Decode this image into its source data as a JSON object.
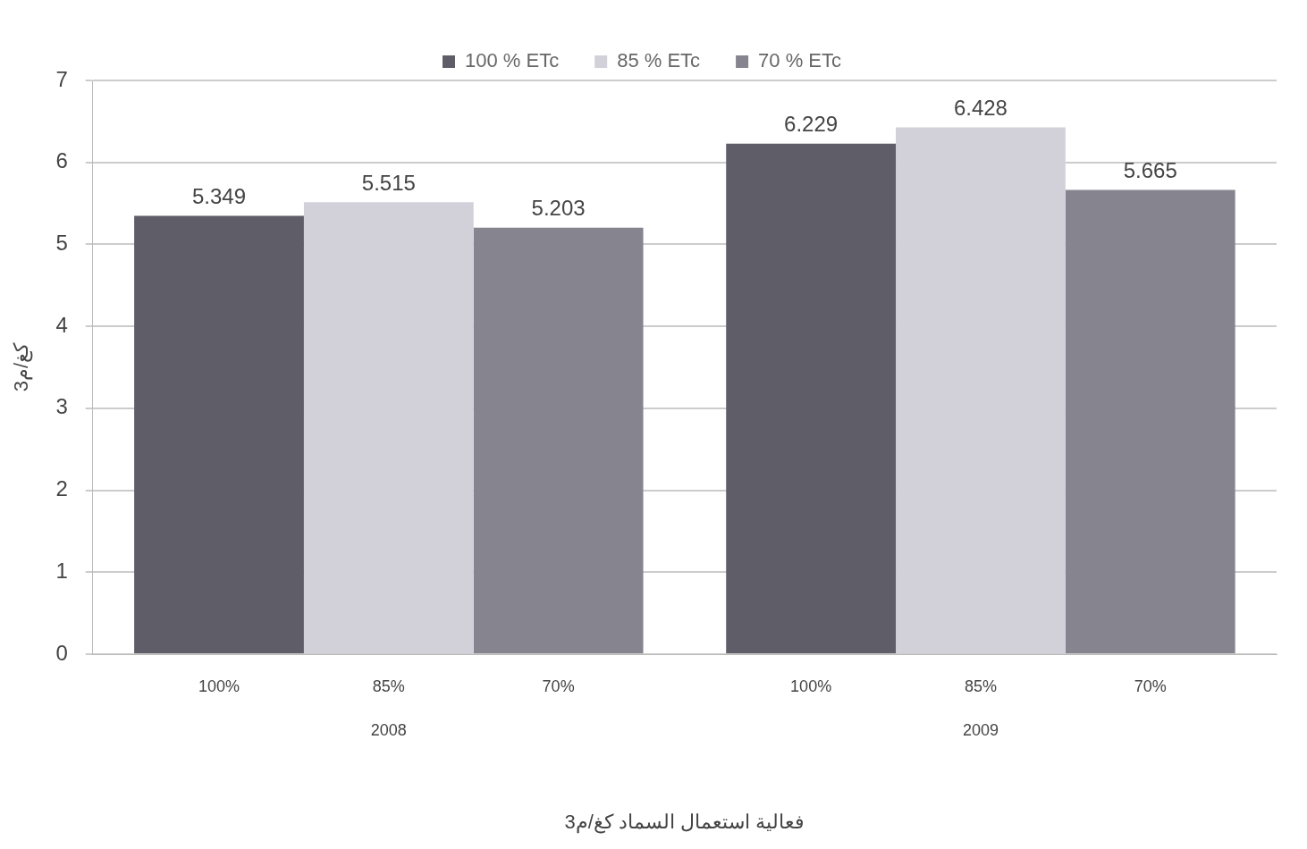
{
  "chart_data": {
    "type": "bar",
    "ylabel": "كغ/م3",
    "xlabel": "فعالية استعمال السماد كغ/م3",
    "categories": [
      "2008",
      "2009"
    ],
    "series": [
      {
        "name": "100 % ETc",
        "color": "#5f5e68",
        "values": [
          5.349,
          6.229
        ]
      },
      {
        "name": "85 % ETc",
        "color": "#d2d1da",
        "values": [
          5.515,
          6.428
        ]
      },
      {
        "name": "70 % ETc",
        "color": "#86858f",
        "values": [
          5.203,
          5.665
        ]
      }
    ],
    "annotations": [
      "100%",
      "85%",
      "70%",
      "100%",
      "85%",
      "70%"
    ],
    "ylim": [
      0,
      7
    ],
    "yticks": [
      0,
      1,
      2,
      3,
      4,
      5,
      6,
      7
    ],
    "grid": "y",
    "legend": "top",
    "data_labels": true
  }
}
